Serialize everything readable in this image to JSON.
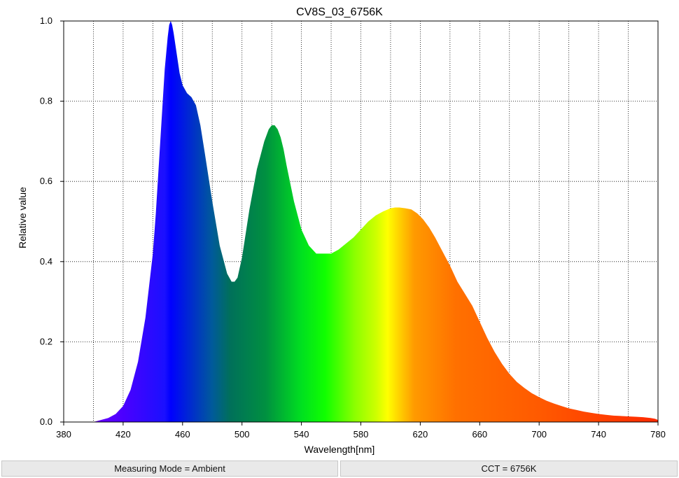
{
  "chart_data": {
    "type": "area",
    "title": "CV8S_03_6756K",
    "xlabel": "Wavelength[nm]",
    "ylabel": "Relative value",
    "xlim": [
      380,
      780
    ],
    "ylim": [
      0,
      1.0
    ],
    "xticks": [
      380,
      420,
      460,
      500,
      540,
      580,
      620,
      660,
      700,
      740,
      780
    ],
    "xtick_labels": [
      "380",
      "420",
      "460",
      "500",
      "540",
      "580",
      "620",
      "660",
      "700",
      "740",
      "780"
    ],
    "yticks": [
      0,
      0.2,
      0.4,
      0.6,
      0.8,
      1.0
    ],
    "ytick_labels": [
      "0.0",
      "0.2",
      "0.4",
      "0.6",
      "0.8",
      "1.0"
    ],
    "x_minor_gridlines": [
      400,
      440,
      480,
      520,
      560,
      600,
      640,
      680,
      720,
      760
    ],
    "grid": true,
    "grid_style": "dotted",
    "fill": "spectral-color-gradient",
    "x": [
      380,
      400,
      405,
      410,
      415,
      420,
      425,
      430,
      435,
      440,
      442,
      444,
      446,
      448,
      450,
      451,
      452,
      453,
      454,
      456,
      458,
      460,
      463,
      466,
      469,
      472,
      475,
      480,
      485,
      490,
      493,
      495,
      497,
      500,
      505,
      510,
      515,
      518,
      520,
      522,
      524,
      526,
      528,
      530,
      535,
      540,
      545,
      550,
      555,
      560,
      565,
      570,
      575,
      580,
      585,
      590,
      595,
      600,
      603,
      606,
      610,
      614,
      618,
      622,
      626,
      630,
      635,
      640,
      645,
      650,
      655,
      660,
      665,
      670,
      675,
      680,
      685,
      690,
      695,
      700,
      705,
      710,
      715,
      720,
      725,
      730,
      735,
      740,
      745,
      750,
      755,
      760,
      765,
      770,
      775,
      778,
      780
    ],
    "y": [
      0,
      0,
      0.005,
      0.01,
      0.02,
      0.04,
      0.08,
      0.15,
      0.26,
      0.42,
      0.52,
      0.64,
      0.76,
      0.88,
      0.96,
      0.99,
      1.0,
      0.99,
      0.97,
      0.92,
      0.87,
      0.84,
      0.82,
      0.81,
      0.79,
      0.74,
      0.67,
      0.55,
      0.44,
      0.37,
      0.35,
      0.35,
      0.36,
      0.41,
      0.53,
      0.63,
      0.7,
      0.73,
      0.74,
      0.74,
      0.73,
      0.71,
      0.68,
      0.64,
      0.55,
      0.48,
      0.44,
      0.42,
      0.42,
      0.42,
      0.43,
      0.445,
      0.46,
      0.48,
      0.5,
      0.515,
      0.525,
      0.533,
      0.535,
      0.535,
      0.533,
      0.53,
      0.52,
      0.505,
      0.485,
      0.46,
      0.425,
      0.39,
      0.35,
      0.32,
      0.29,
      0.25,
      0.21,
      0.175,
      0.145,
      0.12,
      0.1,
      0.085,
      0.072,
      0.062,
      0.053,
      0.046,
      0.04,
      0.034,
      0.03,
      0.026,
      0.023,
      0.02,
      0.018,
      0.016,
      0.015,
      0.014,
      0.013,
      0.012,
      0.01,
      0.008,
      0.005
    ]
  },
  "footer": {
    "measuring_mode": "Measuring Mode = Ambient",
    "cct": "CCT = 6756K"
  }
}
